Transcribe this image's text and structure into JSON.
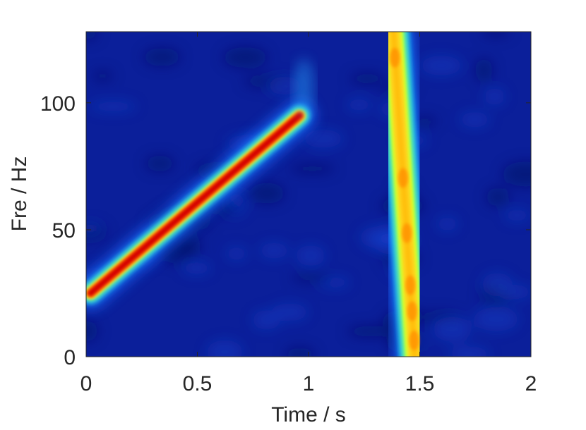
{
  "chart_data": {
    "type": "heatmap",
    "title": "",
    "xlabel": "Time / s",
    "ylabel": "Fre / Hz",
    "xlim": [
      0,
      2
    ],
    "ylim": [
      0,
      128
    ],
    "xticks": [
      0,
      0.5,
      1,
      1.5,
      2
    ],
    "yticks": [
      0,
      50,
      100
    ],
    "xtick_labels": [
      "0",
      "0.5",
      "1",
      "1.5",
      "2"
    ],
    "ytick_labels": [
      "0",
      "50",
      "100"
    ],
    "colormap": "jet",
    "background_color": "#0b1f9a",
    "components": [
      {
        "kind": "linear-chirp",
        "t": [
          0.02,
          0.96
        ],
        "f": [
          25,
          95
        ],
        "peak_color": "#d40000"
      },
      {
        "kind": "near-vertical-ridge",
        "t_at_f_max": 1.38,
        "t_at_f_min": 1.48,
        "f": [
          0,
          128
        ],
        "peak_color": "#ffd21a"
      }
    ],
    "grid": false,
    "legend": "none"
  }
}
